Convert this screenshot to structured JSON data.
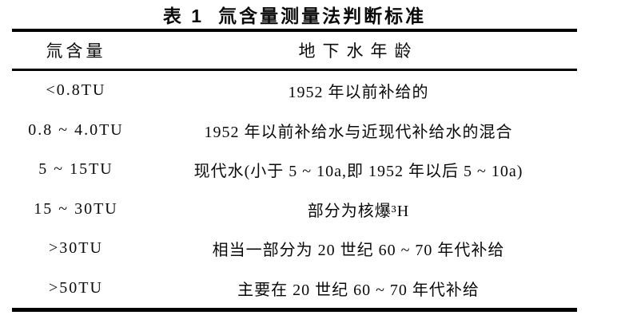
{
  "page": {
    "background_color": "#ffffff",
    "text_color": "#0a0a0a",
    "rule_color": "#000000"
  },
  "caption": {
    "label": "表 1",
    "title": "氚含量测量法判断标准"
  },
  "table": {
    "columns": [
      {
        "header": "氚含量"
      },
      {
        "header": "地下水年龄"
      }
    ],
    "rows": [
      {
        "tritium": "<0.8TU",
        "age": "1952 年以前补给的"
      },
      {
        "tritium": "0.8 ~ 4.0TU",
        "age": "1952 年以前补给水与近现代补给水的混合"
      },
      {
        "tritium": "5 ~ 15TU",
        "age": "现代水(小于 5 ~ 10a,即 1952 年以后 5 ~ 10a)"
      },
      {
        "tritium": "15 ~ 30TU",
        "age": "部分为核爆³H"
      },
      {
        "tritium": ">30TU",
        "age": "相当一部分为 20 世纪 60 ~ 70 年代补给"
      },
      {
        "tritium": ">50TU",
        "age": "主要在 20 世纪 60 ~ 70 年代补给"
      }
    ]
  },
  "chart_data": {
    "type": "table",
    "title": "表 1 氚含量测量法判断标准",
    "columns": [
      "氚含量",
      "地下水年龄"
    ],
    "rows": [
      [
        "<0.8TU",
        "1952 年以前补给的"
      ],
      [
        "0.8 ~ 4.0TU",
        "1952 年以前补给水与近现代补给水的混合"
      ],
      [
        "5 ~ 15TU",
        "现代水(小于 5 ~ 10a,即 1952 年以后 5 ~ 10a)"
      ],
      [
        "15 ~ 30TU",
        "部分为核爆³H"
      ],
      [
        ">30TU",
        "相当一部分为 20 世纪 60 ~ 70 年代补给"
      ],
      [
        ">50TU",
        "主要在 20 世纪 60 ~ 70 年代补给"
      ]
    ]
  }
}
